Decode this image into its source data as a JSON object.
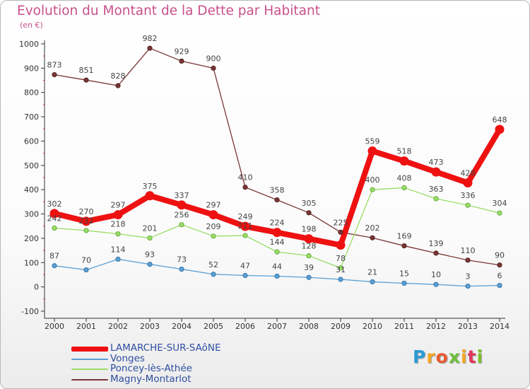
{
  "title": "Evolution du Montant de la Dette par Habitant",
  "unit_label": "(en €)",
  "logo_text": "Proxiti",
  "logo_colors": [
    "#2a9bd6",
    "#f5a623",
    "#e85a2e",
    "#6cbf3a",
    "#f5a623",
    "#e2355b",
    "#7dbf2a"
  ],
  "chart_data": {
    "type": "line",
    "x": [
      "2000",
      "2001",
      "2002",
      "2003",
      "2004",
      "2005",
      "2006",
      "2007",
      "2008",
      "2009",
      "2010",
      "2011",
      "2012",
      "2013",
      "2014"
    ],
    "ylim": [
      -100,
      1000
    ],
    "yticks": [
      -100,
      0,
      100,
      200,
      300,
      400,
      500,
      600,
      700,
      800,
      900,
      1000
    ],
    "grid": false,
    "legend_position": "bottom-left",
    "series": [
      {
        "name": "LAMARCHE-SUR-SAôNE",
        "color": "#ee1111",
        "values": [
          302,
          270,
          297,
          375,
          337,
          297,
          249,
          224,
          198,
          172,
          559,
          518,
          473,
          428,
          648
        ],
        "labels": [
          "302",
          "270",
          "297",
          "375",
          "337",
          "297",
          "249",
          "224",
          "198",
          "",
          "559",
          "518",
          "473",
          "428",
          "648"
        ]
      },
      {
        "name": "Vonges",
        "color": "#5a9fd4",
        "values": [
          87,
          70,
          114,
          93,
          73,
          52,
          47,
          44,
          39,
          31,
          21,
          15,
          10,
          3,
          6
        ],
        "labels": [
          "87",
          "70",
          "114",
          "93",
          "73",
          "52",
          "47",
          "44",
          "39",
          "31",
          "21",
          "15",
          "10",
          "3",
          "6"
        ]
      },
      {
        "name": "Poncey-lès-Athée",
        "color": "#99dd66",
        "values": [
          242,
          232,
          218,
          201,
          256,
          209,
          211,
          144,
          128,
          78,
          400,
          408,
          363,
          336,
          304
        ],
        "labels": [
          "242",
          "232",
          "218",
          "201",
          "256",
          "209",
          "211",
          "144",
          "128",
          "78",
          "400",
          "408",
          "363",
          "336",
          "304"
        ]
      },
      {
        "name": "Magny-Montarlot",
        "color": "#7a3535",
        "values": [
          873,
          851,
          828,
          982,
          929,
          900,
          410,
          358,
          305,
          225,
          202,
          169,
          139,
          110,
          90
        ],
        "labels": [
          "873",
          "851",
          "828",
          "982",
          "929",
          "900",
          "410",
          "358",
          "305",
          "225",
          "202",
          "169",
          "139",
          "110",
          "90"
        ]
      }
    ]
  }
}
